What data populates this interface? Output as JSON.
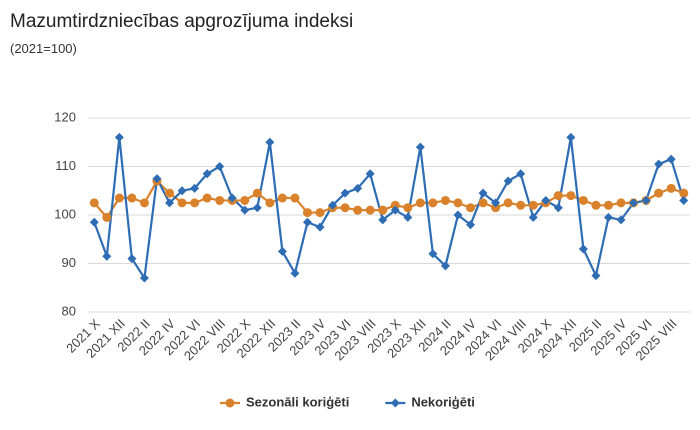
{
  "chart_data": {
    "type": "line",
    "title": "Mazumtirdzniecības apgrozījuma indeksi",
    "subtitle": "(2021=100)",
    "categories": [
      "2021 X",
      null,
      "2021 XII",
      null,
      "2022 II",
      null,
      "2022 IV",
      null,
      "2022 VI",
      null,
      "2022 VIII",
      null,
      "2022 X",
      null,
      "2022 XII",
      null,
      "2023 II",
      null,
      "2023 IV",
      null,
      "2023 VI",
      null,
      "2023 VIII",
      null,
      "2023 X",
      null,
      "2023 XII",
      null,
      "2024 II",
      null,
      "2024 IV",
      null,
      "2024 VI",
      null,
      "2024 VIII",
      null,
      "2024 X",
      null,
      "2024 XII",
      null,
      "2025 II",
      null,
      "2025 IV",
      null,
      "2025 VI",
      null,
      "2025 VIII",
      null
    ],
    "series": [
      {
        "name": "Sezonāli koriģēti",
        "color": "#d9822b",
        "marker": "circle",
        "values": [
          102.5,
          99.5,
          103.5,
          103.5,
          102.5,
          107,
          104.5,
          102.5,
          102.5,
          103.5,
          103,
          103,
          103,
          104.5,
          102.5,
          103.5,
          103.5,
          100.5,
          100.5,
          101.5,
          101.5,
          101,
          101,
          101,
          102,
          101.5,
          102.5,
          102.5,
          103,
          102.5,
          101.5,
          102.5,
          101.5,
          102.5,
          102,
          102,
          102.5,
          104,
          104,
          103,
          102,
          102,
          102.5,
          102.5,
          103,
          104.5,
          105.5,
          104.5
        ]
      },
      {
        "name": "Nekoriģēti",
        "color": "#2e6db4",
        "marker": "diamond",
        "values": [
          98.5,
          91.5,
          116,
          91,
          87,
          107.5,
          102.5,
          105,
          105.5,
          108.5,
          110,
          103.5,
          101,
          101.5,
          115,
          92.5,
          88,
          98.5,
          97.5,
          102,
          104.5,
          105.5,
          108.5,
          99,
          101,
          99.5,
          114,
          92,
          89.5,
          100,
          98,
          104.5,
          102.5,
          107,
          108.5,
          99.5,
          103,
          101.5,
          116,
          93,
          87.5,
          99.5,
          99,
          102.5,
          103,
          110.5,
          111.5,
          103
        ]
      }
    ],
    "ylim": [
      80,
      120
    ],
    "yticks": [
      80,
      90,
      100,
      110,
      120
    ],
    "grid": true,
    "legend": "bottom"
  }
}
